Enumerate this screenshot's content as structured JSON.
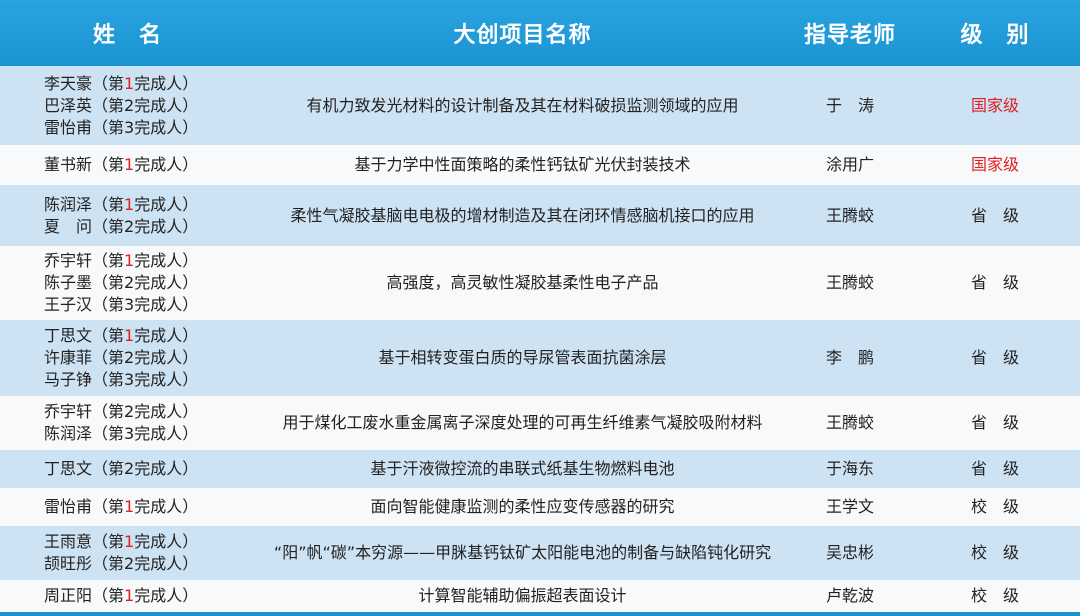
{
  "header": {
    "name": "姓　名",
    "project": "大创项目名称",
    "teacher": "指导老师",
    "level": "级　别"
  },
  "colors": {
    "header_bg": "#1a93d2",
    "national": "#e02020",
    "row_alt": "#cde2f3"
  },
  "rows": [
    {
      "members": [
        {
          "name": "李天豪",
          "pre": "（第",
          "num": "1",
          "post": "完成人）",
          "red": true
        },
        {
          "name": "巴泽英",
          "pre": "（第",
          "num": "2",
          "post": "完成人）"
        },
        {
          "name": "雷怡甫",
          "pre": "（第",
          "num": "3",
          "post": "完成人）"
        }
      ],
      "project": "有机力致发光材料的设计制备及其在材料破损监测领域的应用",
      "teacher": "于　涛",
      "level": "国家级",
      "national": true
    },
    {
      "members": [
        {
          "name": "董书新",
          "pre": "（第",
          "num": "1",
          "post": "完成人）",
          "red": true
        }
      ],
      "project": "基于力学中性面策略的柔性钙钛矿光伏封装技术",
      "teacher": "涂用广",
      "level": "国家级",
      "national": true
    },
    {
      "members": [
        {
          "name": "陈润泽",
          "pre": "（第",
          "num": "1",
          "post": "完成人）",
          "red": true
        },
        {
          "name": "夏　问",
          "pre": "（第",
          "num": "2",
          "post": "完成人）"
        }
      ],
      "project": "柔性气凝胶基脑电电极的增材制造及其在闭环情感脑机接口的应用",
      "teacher": "王腾蛟",
      "level": "省　级"
    },
    {
      "members": [
        {
          "name": "乔宇轩",
          "pre": "（第",
          "num": "1",
          "post": "完成人）",
          "red": true
        },
        {
          "name": "陈子墨",
          "pre": "（第",
          "num": "2",
          "post": "完成人）"
        },
        {
          "name": "王子汉",
          "pre": "（第",
          "num": "3",
          "post": "完成人）"
        }
      ],
      "project": "高强度，高灵敏性凝胶基柔性电子产品",
      "teacher": "王腾蛟",
      "level": "省　级"
    },
    {
      "members": [
        {
          "name": "丁思文",
          "pre": "（第",
          "num": "1",
          "post": "完成人）",
          "red": true
        },
        {
          "name": "许康菲",
          "pre": "（第",
          "num": "2",
          "post": "完成人）"
        },
        {
          "name": "马子铮",
          "pre": "（第",
          "num": "3",
          "post": "完成人）"
        }
      ],
      "project": "基于相转变蛋白质的导尿管表面抗菌涂层",
      "teacher": "李　鹏",
      "level": "省　级"
    },
    {
      "members": [
        {
          "name": "乔宇轩",
          "pre": "（第",
          "num": "2",
          "post": "完成人）"
        },
        {
          "name": "陈润泽",
          "pre": "（第",
          "num": "3",
          "post": "完成人）"
        }
      ],
      "project": "用于煤化工废水重金属离子深度处理的可再生纤维素气凝胶吸附材料",
      "teacher": "王腾蛟",
      "level": "省　级"
    },
    {
      "members": [
        {
          "name": "丁思文",
          "pre": "（第",
          "num": "2",
          "post": "完成人）"
        }
      ],
      "project": "基于汗液微控流的串联式纸基生物燃料电池",
      "teacher": "于海东",
      "level": "省　级"
    },
    {
      "members": [
        {
          "name": "雷怡甫",
          "pre": "（第",
          "num": "1",
          "post": "完成人）",
          "red": true
        }
      ],
      "project": "面向智能健康监测的柔性应变传感器的研究",
      "teacher": "王学文",
      "level": "校　级"
    },
    {
      "members": [
        {
          "name": "王雨意",
          "pre": "（第",
          "num": "1",
          "post": "完成人）",
          "red": true
        },
        {
          "name": "颉旺彤",
          "pre": "（第",
          "num": "2",
          "post": "完成人）"
        }
      ],
      "project": "“阳”帆“碳”本穷源——甲脒基钙钛矿太阳能电池的制备与缺陷钝化研究",
      "teacher": "吴忠彬",
      "level": "校　级"
    },
    {
      "members": [
        {
          "name": "周正阳",
          "pre": "（第",
          "num": "1",
          "post": "完成人）",
          "red": true
        }
      ],
      "project": "计算智能辅助偏振超表面设计",
      "teacher": "卢乾波",
      "level": "校　级"
    }
  ]
}
